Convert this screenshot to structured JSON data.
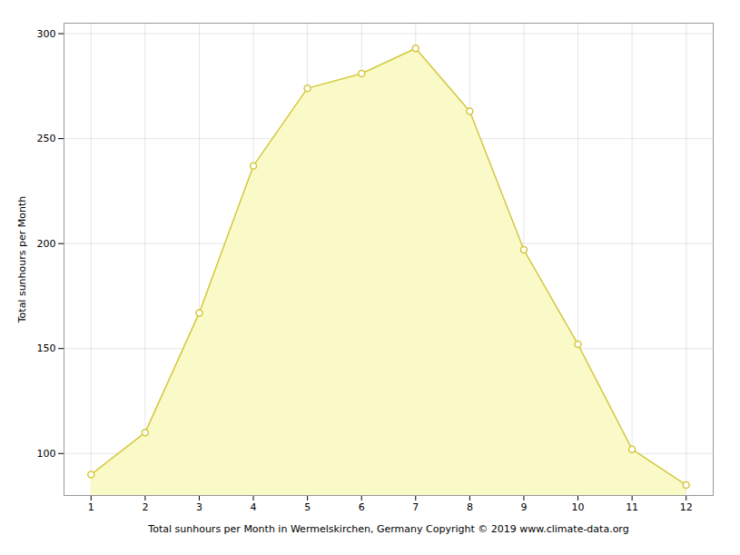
{
  "chart_data": {
    "type": "area",
    "x": [
      1,
      2,
      3,
      4,
      5,
      6,
      7,
      8,
      9,
      10,
      11,
      12
    ],
    "series": [
      {
        "type": "area",
        "color": "#FAFAC8",
        "values": [
          90,
          110,
          167,
          237,
          274,
          281,
          293,
          263,
          197,
          152,
          102,
          85
        ]
      },
      {
        "type": "line",
        "color": "#D4C840",
        "marker": "circle",
        "values": [
          90,
          110,
          167,
          237,
          274,
          281,
          293,
          263,
          197,
          152,
          102,
          85
        ]
      }
    ],
    "xlabel": "Total sunhours per Month in Wermelskirchen, Germany Copyright © 2019 www.climate-data.org",
    "ylabel": "Total sunhours per Month",
    "xlim": [
      0.5,
      12.5
    ],
    "ylim": [
      80,
      305
    ],
    "xticks": [
      1,
      2,
      3,
      4,
      5,
      6,
      7,
      8,
      9,
      10,
      11,
      12
    ],
    "yticks": [
      100,
      150,
      200,
      250,
      300
    ],
    "grid": true
  }
}
